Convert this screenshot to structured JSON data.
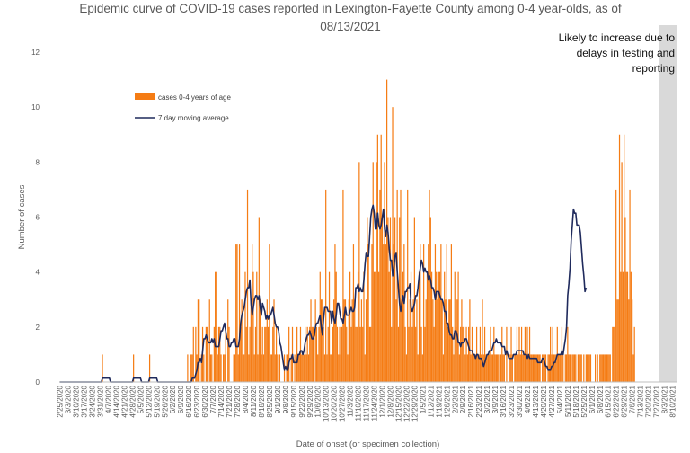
{
  "chart_data": {
    "type": "bar",
    "title": "Epidemic curve of COVID-19 cases reported in Lexington-Fayette County among 0-4 year-olds, as of 08/13/2021",
    "xlabel": "Date of onset (or specimen collection)",
    "ylabel": "Number of cases",
    "ylim": [
      0,
      12
    ],
    "yticks": [
      0,
      2,
      4,
      6,
      8,
      10,
      12
    ],
    "grid": false,
    "legend_position": "upper-left",
    "x_start": "2020-02-25",
    "x_end": "2021-08-13",
    "xtick_labels": [
      "2/25/2020",
      "3/3/2020",
      "3/10/2020",
      "3/17/2020",
      "3/24/2020",
      "3/31/2020",
      "4/7/2020",
      "4/14/2020",
      "4/21/2020",
      "4/28/2020",
      "5/5/2020",
      "5/12/2020",
      "5/19/2020",
      "5/26/2020",
      "6/2/2020",
      "6/9/2020",
      "6/16/2020",
      "6/23/2020",
      "6/30/2020",
      "7/7/2020",
      "7/14/2020",
      "7/21/2020",
      "7/28/2020",
      "8/4/2020",
      "8/11/2020",
      "8/18/2020",
      "8/25/2020",
      "9/1/2020",
      "9/8/2020",
      "9/15/2020",
      "9/22/2020",
      "9/29/2020",
      "10/6/2020",
      "10/13/2020",
      "10/20/2020",
      "10/27/2020",
      "11/3/2020",
      "11/10/2020",
      "11/17/2020",
      "11/24/2020",
      "12/1/2020",
      "12/8/2020",
      "12/15/2020",
      "12/22/2020",
      "12/29/2020",
      "1/5/2021",
      "1/12/2021",
      "1/19/2021",
      "1/26/2021",
      "2/2/2021",
      "2/9/2021",
      "2/16/2021",
      "2/23/2021",
      "3/2/2021",
      "3/9/2021",
      "3/16/2021",
      "3/23/2021",
      "3/30/2021",
      "4/6/2021",
      "4/13/2021",
      "4/20/2021",
      "4/27/2021",
      "5/4/2021",
      "5/11/2021",
      "5/18/2021",
      "5/25/2021",
      "6/1/2021",
      "6/8/2021",
      "6/15/2021",
      "6/22/2021",
      "6/29/2021",
      "7/6/2021",
      "7/13/2021",
      "7/20/2021",
      "7/27/2021",
      "8/3/2021",
      "8/10/2021"
    ],
    "series": [
      {
        "name": "cases 0-4 years of age",
        "type": "bar",
        "color": "#F57C14",
        "values": [
          0,
          0,
          0,
          0,
          0,
          0,
          0,
          0,
          0,
          0,
          0,
          0,
          0,
          0,
          0,
          0,
          0,
          0,
          0,
          0,
          0,
          0,
          0,
          0,
          0,
          0,
          0,
          0,
          0,
          0,
          0,
          0,
          0,
          0,
          0,
          0,
          0,
          1,
          0,
          0,
          0,
          0,
          0,
          0,
          0,
          0,
          0,
          0,
          0,
          0,
          0,
          0,
          0,
          0,
          0,
          0,
          0,
          0,
          0,
          0,
          0,
          0,
          0,
          0,
          1,
          0,
          0,
          0,
          0,
          0,
          0,
          0,
          0,
          0,
          0,
          0,
          0,
          0,
          1,
          0,
          0,
          0,
          0,
          0,
          0,
          0,
          0,
          0,
          0,
          0,
          0,
          0,
          0,
          0,
          0,
          0,
          0,
          0,
          0,
          0,
          0,
          0,
          0,
          0,
          0,
          0,
          0,
          0,
          0,
          0,
          0,
          1,
          0,
          0,
          1,
          1,
          2,
          0,
          2,
          1,
          3,
          3,
          0,
          1,
          2,
          1,
          0,
          2,
          2,
          0,
          3,
          1,
          1,
          0,
          2,
          4,
          4,
          1,
          2,
          2,
          1,
          0,
          1,
          1,
          2,
          0,
          3,
          2,
          0,
          0,
          0,
          1,
          1,
          5,
          5,
          1,
          5,
          2,
          3,
          1,
          1,
          4,
          2,
          7,
          1,
          2,
          3,
          5,
          4,
          1,
          2,
          4,
          1,
          6,
          3,
          1,
          2,
          1,
          2,
          2,
          3,
          2,
          5,
          1,
          1,
          2,
          3,
          1,
          2,
          1,
          0,
          1,
          0,
          0,
          0,
          1,
          0,
          1,
          1,
          2,
          0,
          1,
          2,
          0,
          1,
          0,
          2,
          1,
          1,
          2,
          1,
          1,
          1,
          2,
          1,
          2,
          1,
          2,
          3,
          2,
          2,
          0,
          3,
          2,
          1,
          2,
          4,
          3,
          3,
          2,
          1,
          7,
          1,
          2,
          4,
          1,
          1,
          2,
          3,
          5,
          4,
          2,
          1,
          2,
          1,
          2,
          7,
          3,
          3,
          2,
          1,
          3,
          4,
          2,
          3,
          5,
          3,
          2,
          2,
          4,
          8,
          2,
          3,
          2,
          4,
          1,
          3,
          6,
          5,
          2,
          2,
          5,
          8,
          4,
          4,
          8,
          9,
          4,
          7,
          9,
          6,
          5,
          8,
          5,
          11,
          6,
          4,
          6,
          2,
          10,
          5,
          6,
          3,
          7,
          2,
          6,
          7,
          3,
          4,
          5,
          2,
          1,
          7,
          2,
          3,
          4,
          2,
          3,
          6,
          2,
          3,
          1,
          4,
          5,
          2,
          1,
          5,
          2,
          3,
          4,
          5,
          7,
          6,
          4,
          3,
          2,
          5,
          4,
          3,
          4,
          4,
          5,
          3,
          1,
          4,
          3,
          5,
          2,
          3,
          3,
          5,
          2,
          1,
          4,
          2,
          3,
          4,
          1,
          2,
          3,
          2,
          2,
          1,
          2,
          1,
          2,
          3,
          1,
          2,
          1,
          1,
          1,
          2,
          1,
          1,
          2,
          1,
          3,
          1,
          2,
          1,
          1,
          1,
          1,
          2,
          1,
          1,
          2,
          1,
          1,
          1,
          1,
          0,
          1,
          2,
          1,
          1,
          0,
          2,
          0,
          0,
          1,
          2,
          1,
          0,
          1,
          1,
          2,
          1,
          2,
          1,
          2,
          1,
          1,
          2,
          1,
          2,
          1,
          2,
          1,
          1,
          1,
          1,
          1,
          1,
          1,
          1,
          1,
          0,
          1,
          1,
          1,
          1,
          0,
          1,
          1,
          2,
          1,
          2,
          1,
          1,
          1,
          2,
          1,
          1,
          1,
          2,
          1,
          0,
          1,
          1,
          2,
          1,
          1,
          0,
          1,
          1,
          1,
          1,
          0,
          1,
          1,
          1,
          1,
          0,
          1,
          0,
          1,
          1,
          1,
          1,
          1,
          0,
          0,
          0,
          1,
          0,
          1,
          0,
          1,
          1,
          1,
          1,
          1,
          1,
          1,
          1,
          1,
          1,
          0,
          2,
          2,
          2,
          7,
          3,
          3,
          9,
          4,
          8,
          4,
          9,
          6,
          4,
          4,
          3,
          7,
          4,
          3,
          1,
          2
        ]
      },
      {
        "name": "7 day moving average",
        "type": "line",
        "color": "#1F2A5C",
        "values": [
          0,
          0,
          0,
          0,
          0,
          0,
          0,
          0,
          0,
          0,
          0,
          0,
          0,
          0,
          0,
          0,
          0,
          0,
          0,
          0,
          0,
          0,
          0,
          0,
          0,
          0,
          0,
          0,
          0,
          0,
          0,
          0,
          0,
          0,
          0,
          0,
          0,
          0.14,
          0.14,
          0.14,
          0.14,
          0.14,
          0.14,
          0.14,
          0,
          0,
          0,
          0,
          0,
          0,
          0,
          0,
          0,
          0,
          0,
          0,
          0,
          0,
          0,
          0,
          0,
          0,
          0,
          0,
          0.14,
          0.14,
          0.14,
          0.14,
          0.14,
          0.14,
          0.14,
          0,
          0,
          0,
          0,
          0,
          0,
          0,
          0.14,
          0.14,
          0.14,
          0.14,
          0.14,
          0.14,
          0.14,
          0,
          0,
          0,
          0,
          0,
          0,
          0,
          0,
          0,
          0,
          0,
          0,
          0,
          0,
          0,
          0,
          0,
          0,
          0,
          0,
          0,
          0,
          0,
          0,
          0,
          0,
          0,
          0,
          0,
          0,
          0.14,
          0.14,
          0.14,
          0.29,
          0.43,
          0.71,
          0.71,
          0.86,
          0.71,
          1.14,
          1.57,
          1.57,
          1.71,
          1.57,
          1.43,
          1.43,
          1.43,
          1.57,
          1.43,
          1.57,
          1.29,
          1.29,
          1.29,
          1.29,
          1.57,
          1.86,
          1.86,
          2,
          2.14,
          1.86,
          1.57,
          1.57,
          1.29,
          1.29,
          1.43,
          1.43,
          1.57,
          1.57,
          1.29,
          1.29,
          1.29,
          1.57,
          2.14,
          2.43,
          2.57,
          2.71,
          3,
          3.29,
          3.43,
          3.43,
          3.71,
          2.86,
          2.43,
          2.71,
          3,
          3.14,
          3.14,
          3,
          3.14,
          2.71,
          2.43,
          2.86,
          2.71,
          2.57,
          2.29,
          2.43,
          2.29,
          2.43,
          2.43,
          2.57,
          2.71,
          2.43,
          2.14,
          2,
          2,
          1.86,
          1.43,
          1.29,
          1,
          0.71,
          0.43,
          0.57,
          0.43,
          0.43,
          0.71,
          0.86,
          0.86,
          1,
          0.71,
          0.71,
          0.71,
          0.71,
          1,
          1,
          1.14,
          1.14,
          1,
          1.14,
          1.43,
          1.57,
          1.71,
          1.71,
          1.86,
          1.71,
          1.57,
          1.57,
          1.71,
          2,
          2.14,
          2.14,
          2.29,
          2.43,
          2,
          1.71,
          2.29,
          2.71,
          2.71,
          2.71,
          2.57,
          2.57,
          2.57,
          2.14,
          2.57,
          2.29,
          2.14,
          2.43,
          2.86,
          2.86,
          2.57,
          2.29,
          2.29,
          2.14,
          2.43,
          2.71,
          2.43,
          2.43,
          2.43,
          2.57,
          2.71,
          2.57,
          2.57,
          2.71,
          3.43,
          3.43,
          3.57,
          3.29,
          3.43,
          3.29,
          3.29,
          3.71,
          4.29,
          4.71,
          4.57,
          4.57,
          5.29,
          6,
          6.29,
          6.43,
          6.14,
          5.57,
          5.57,
          6.14,
          5.71,
          5.57,
          5.71,
          6,
          6.29,
          5.57,
          5.29,
          5.71,
          5.43,
          4.86,
          4.43,
          4.43,
          3.86,
          4.14,
          4.57,
          4.71,
          4,
          3.43,
          2.86,
          2.57,
          2.86,
          3.14,
          2.86,
          3.29,
          3.29,
          3.43,
          3.43,
          3.57,
          2.71,
          2.57,
          2.71,
          2.86,
          3.14,
          3.14,
          3.43,
          3.86,
          4.14,
          4.43,
          4.29,
          4,
          4.14,
          4,
          4,
          3.71,
          3.86,
          3.71,
          3.43,
          3.43,
          3.29,
          3,
          3.29,
          3.29,
          3.29,
          3.14,
          3,
          3,
          2.86,
          2.57,
          2.57,
          2.14,
          2.14,
          1.86,
          1.71,
          1.71,
          1.57,
          1.57,
          1.86,
          1.86,
          1.71,
          1.43,
          1.43,
          1.29,
          1.43,
          1.43,
          1.43,
          1.57,
          1.57,
          1.43,
          1.29,
          1.14,
          1.14,
          1.14,
          1,
          1,
          0.86,
          1,
          1,
          0.86,
          0.86,
          0.86,
          0.71,
          0.57,
          0.71,
          0.86,
          1,
          1,
          1.14,
          1.14,
          1.14,
          1.29,
          1.43,
          1.43,
          1.57,
          1.43,
          1.43,
          1.43,
          1.43,
          1.29,
          1.29,
          1.29,
          1,
          1.14,
          1,
          0.86,
          0.86,
          0.86,
          0.86,
          1,
          1,
          1,
          1.14,
          1.14,
          1.14,
          1.14,
          1.14,
          1.14,
          1,
          1,
          1,
          0.86,
          1,
          0.86,
          0.86,
          0.86,
          0.86,
          0.86,
          0.86,
          0.86,
          0.71,
          0.71,
          0.71,
          0.71,
          0.86,
          0.86,
          0.71,
          0.57,
          0.57,
          0.43,
          0.43,
          0.43,
          0.57,
          0.57,
          0.71,
          0.71,
          0.86,
          1,
          1,
          1,
          1,
          1.14,
          1,
          1.29,
          1.57,
          2,
          3.14,
          3.57,
          4.14,
          5.14,
          5.71,
          6.29,
          6.14,
          6.14,
          5.71,
          5.71,
          5.71,
          5.43,
          4.86,
          4.29,
          3.86,
          3.29,
          3.43
        ]
      }
    ],
    "annotations": [
      {
        "text_lines": [
          "Likely to increase due to",
          "delays in testing and",
          "reporting"
        ],
        "shaded_from": "2021-07-30",
        "shaded_to": "2021-08-13",
        "shade_color": "#D9D9D9"
      }
    ]
  }
}
